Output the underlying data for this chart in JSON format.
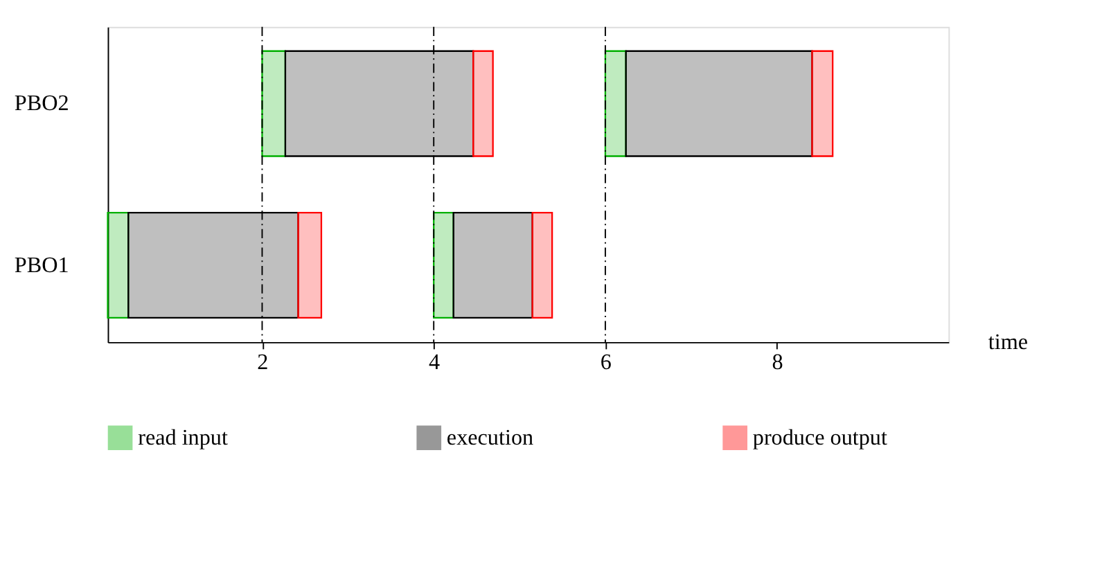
{
  "chart_data": {
    "type": "bar",
    "orientation": "horizontal",
    "xlabel": "time",
    "categories": [
      "PBO2",
      "PBO1"
    ],
    "series": [
      {
        "name": "read input",
        "color": "#00b000",
        "base": [
          2,
          0.2
        ],
        "values": [
          0.27,
          0.24
        ]
      },
      {
        "name": "execution",
        "color": "#000000",
        "base": [
          2.27,
          0.44
        ],
        "values": [
          2.19,
          1.98
        ]
      },
      {
        "name": "produce output",
        "color": "#ff0000",
        "base": [
          4.46,
          2.42
        ],
        "values": [
          0.23,
          0.27
        ]
      },
      {
        "color": "#00b000",
        "base": [
          6,
          4
        ],
        "values": [
          0.24,
          0.23
        ]
      },
      {
        "color": "#000000",
        "base": [
          6.24,
          4.23
        ],
        "values": [
          2.17,
          0.92
        ]
      },
      {
        "color": "#ff0000",
        "base": [
          8.41,
          5.15
        ],
        "values": [
          0.24,
          0.23
        ]
      }
    ],
    "xlim": [
      0.2,
      10
    ],
    "xticks": [
      2,
      4,
      6,
      8
    ],
    "ref_lines": [
      {
        "axis": "x",
        "value": 2,
        "line_style": "dashed"
      },
      {
        "axis": "x",
        "value": 4,
        "line_style": "dashed"
      },
      {
        "axis": "x",
        "value": 6,
        "line_style": "dashed"
      }
    ],
    "grid": false,
    "legend": "bottom"
  }
}
